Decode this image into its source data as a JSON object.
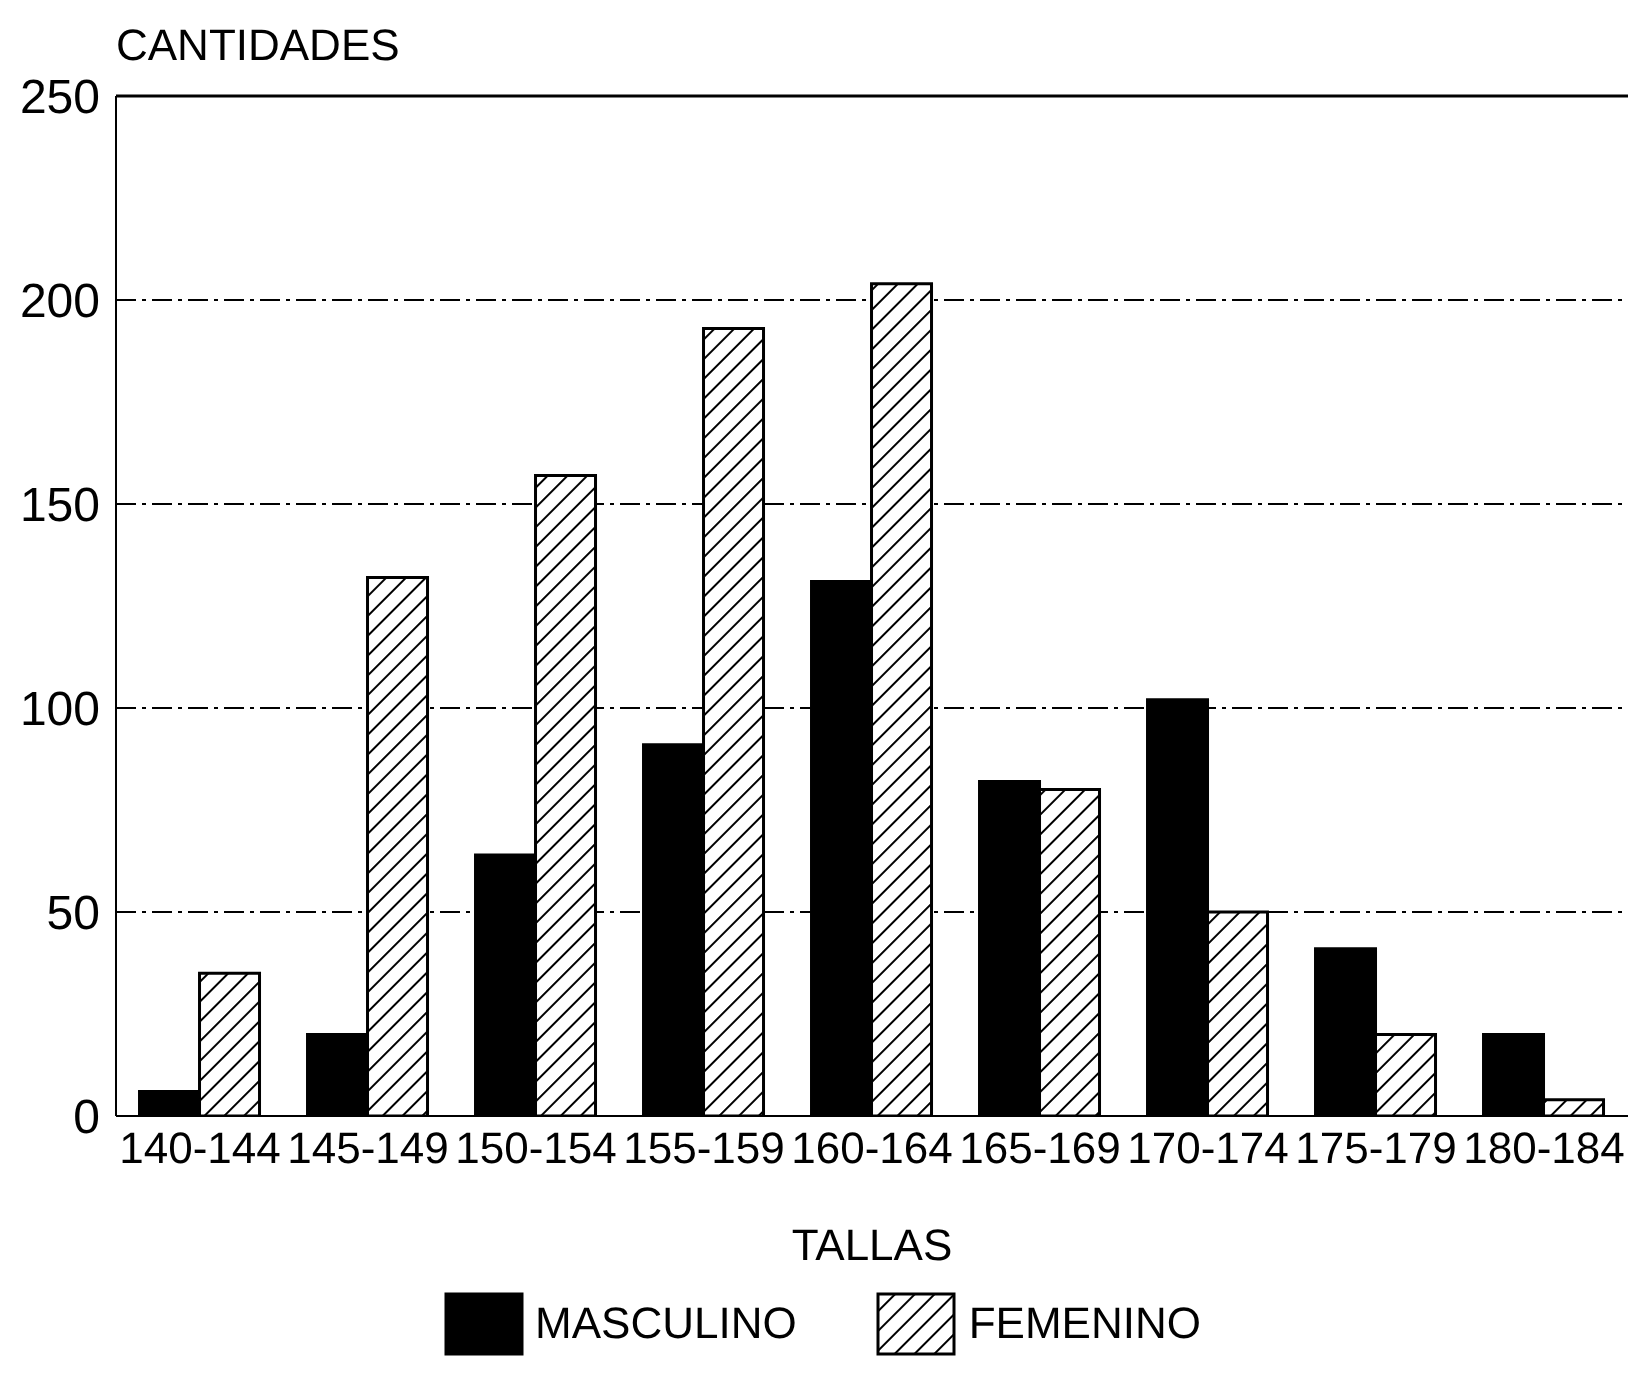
{
  "chart_data": {
    "type": "bar",
    "xlabel": "TALLAS",
    "ylabel": "CANTIDADES",
    "categories": [
      "140-144",
      "145-149",
      "150-154",
      "155-159",
      "160-164",
      "165-169",
      "170-174",
      "175-179",
      "180-184"
    ],
    "series": [
      {
        "name": "MASCULINO",
        "color": "#000000",
        "values": [
          6,
          20,
          64,
          91,
          131,
          82,
          102,
          41,
          20
        ]
      },
      {
        "name": "FEMENINO",
        "color": "#000000",
        "values": [
          35,
          132,
          157,
          193,
          204,
          80,
          50,
          20,
          4
        ]
      }
    ],
    "ylim": [
      0,
      250
    ],
    "yticks": [
      0,
      50,
      100,
      150,
      200,
      250
    ],
    "grid": "y",
    "legend": "bottom"
  }
}
